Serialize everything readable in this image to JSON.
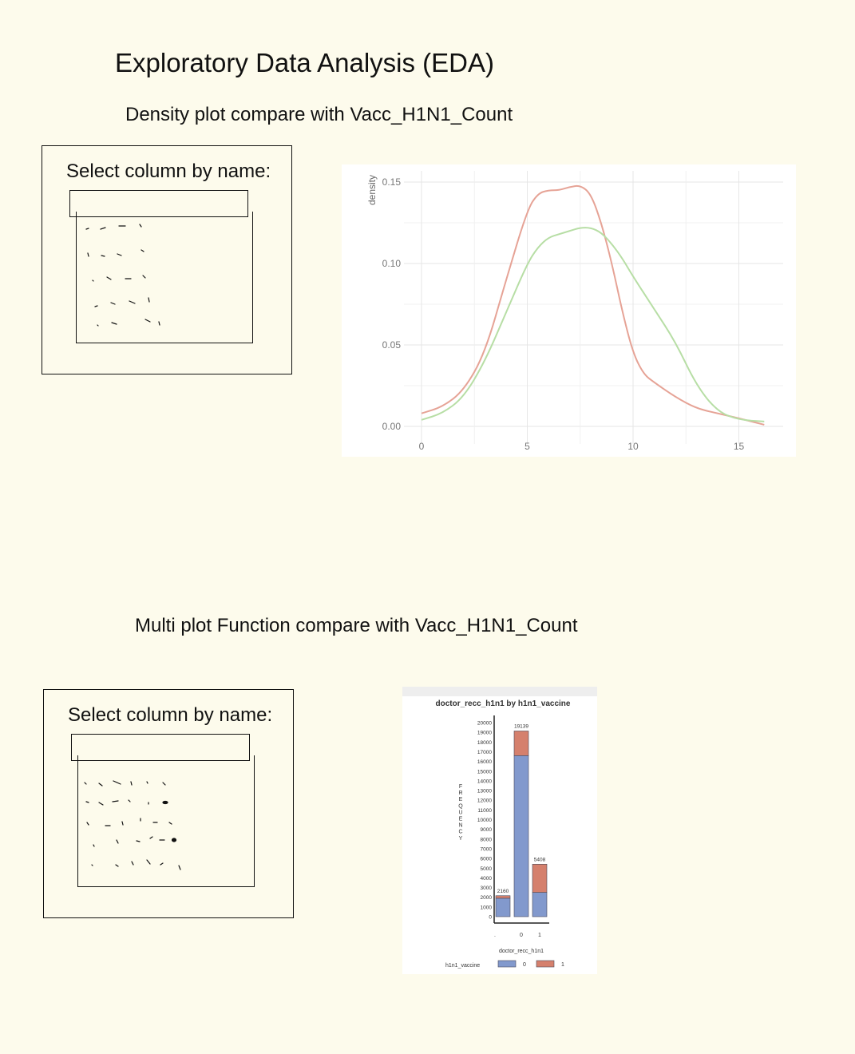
{
  "page": {
    "title": "Exploratory Data Analysis (EDA)"
  },
  "density_section": {
    "subtitle": "Density plot compare with Vacc_H1N1_Count",
    "selector": {
      "label": "Select column by name:",
      "value": ""
    }
  },
  "multi_section": {
    "subtitle": "Multi plot Function compare with Vacc_H1N1_Count",
    "selector": {
      "label": "Select column by name:",
      "value": ""
    }
  },
  "chart_data": [
    {
      "type": "line",
      "title": "",
      "ylabel": "density",
      "xlabel": "",
      "xlim": [
        0,
        16.5
      ],
      "ylim": [
        0,
        0.15
      ],
      "x_ticks": [
        "0",
        "5",
        "10",
        "15"
      ],
      "y_ticks": [
        "0.00",
        "0.05",
        "0.10",
        "0.15"
      ],
      "grid": true,
      "series": [
        {
          "color": "#e6a396",
          "x": [
            0,
            1,
            2,
            3,
            4,
            5,
            5.5,
            6,
            6.5,
            7,
            7.5,
            8,
            8.5,
            9,
            9.5,
            10,
            10.5,
            11,
            12,
            13,
            14,
            15,
            16.2
          ],
          "y": [
            0.008,
            0.012,
            0.022,
            0.045,
            0.09,
            0.133,
            0.143,
            0.145,
            0.145,
            0.147,
            0.148,
            0.143,
            0.125,
            0.1,
            0.07,
            0.045,
            0.032,
            0.027,
            0.018,
            0.011,
            0.008,
            0.005,
            0.001
          ]
        },
        {
          "color": "#b7dea5",
          "x": [
            0,
            1,
            2,
            3,
            4,
            5,
            5.5,
            6,
            6.5,
            7,
            7.5,
            8,
            8.5,
            9,
            9.5,
            10,
            11,
            12,
            13,
            14,
            15,
            16.2
          ],
          "y": [
            0.004,
            0.008,
            0.018,
            0.04,
            0.07,
            0.1,
            0.11,
            0.116,
            0.118,
            0.12,
            0.122,
            0.122,
            0.119,
            0.112,
            0.103,
            0.092,
            0.072,
            0.052,
            0.025,
            0.009,
            0.004,
            0.003
          ]
        }
      ]
    },
    {
      "type": "bar",
      "title": "doctor_recc_h1n1 by h1n1_vaccine",
      "xlabel": "doctor_recc_h1n1",
      "ylabel": "FREQUENCY",
      "ylim": [
        0,
        20000
      ],
      "y_ticks": [
        "0",
        "1000",
        "2000",
        "3000",
        "4000",
        "5000",
        "6000",
        "7000",
        "8000",
        "9000",
        "10000",
        "11000",
        "12000",
        "13000",
        "14000",
        "15000",
        "16000",
        "17000",
        "18000",
        "19000",
        "20000"
      ],
      "categories": [
        ".",
        "0",
        "1"
      ],
      "totals_labels": [
        "2160",
        "19139",
        "5408"
      ],
      "legend_title": "h1n1_vaccine",
      "series": [
        {
          "name": "0",
          "color": "#8299cd",
          "values": [
            1900,
            16600,
            2500
          ]
        },
        {
          "name": "1",
          "color": "#d5806d",
          "values": [
            260,
            2539,
            2908
          ]
        }
      ]
    }
  ]
}
